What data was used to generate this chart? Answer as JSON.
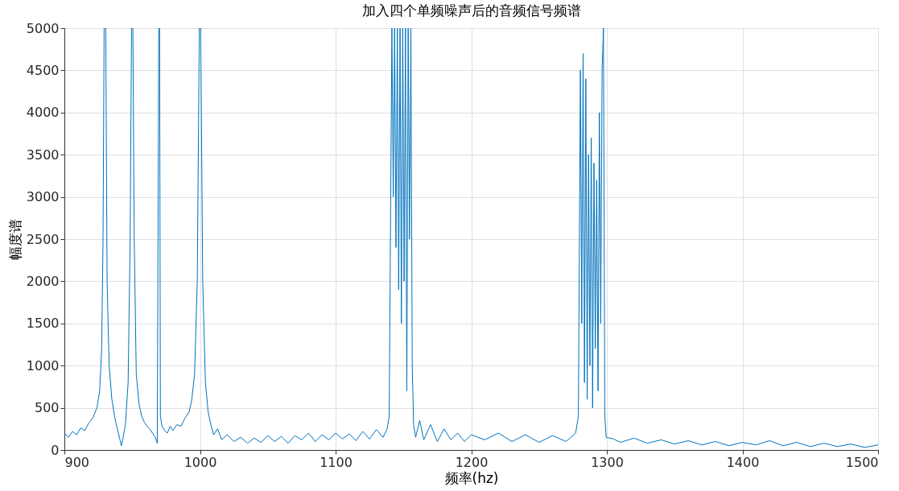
{
  "chart_data": {
    "type": "line",
    "title": "加入四个单频噪声后的音频信号频谱",
    "xlabel": "频率(hz)",
    "ylabel": "幅度谱",
    "xlim": [
      900,
      1500
    ],
    "xticks": [
      900,
      1000,
      1100,
      1200,
      1300,
      1400,
      1500
    ],
    "ylim": [
      0,
      5000
    ],
    "yticks": [
      0,
      500,
      1000,
      1500,
      2000,
      2500,
      3000,
      3500,
      4000,
      4500,
      5000
    ],
    "grid": true,
    "line_style": "solid",
    "marker": "none",
    "series": [
      {
        "color": "#0072bd",
        "x": [
          900,
          903,
          906,
          909,
          912,
          915,
          918,
          921,
          924,
          926,
          927.5,
          928.5,
          929.3,
          930.5,
          931.5,
          933,
          935,
          937,
          939,
          941,
          942,
          943,
          945,
          947,
          948.5,
          949.5,
          950.5,
          951.5,
          953,
          955,
          957,
          959,
          961,
          963,
          965,
          967,
          968.5,
          969.6,
          970.2,
          970.8,
          972,
          974,
          976,
          978,
          980,
          983,
          986,
          989,
          992,
          994,
          996,
          998,
          999.5,
          1000.5,
          1002,
          1004,
          1006,
          1008,
          1010,
          1013,
          1016,
          1020,
          1025,
          1030,
          1035,
          1040,
          1045,
          1050,
          1055,
          1060,
          1065,
          1070,
          1075,
          1080,
          1085,
          1090,
          1095,
          1100,
          1105,
          1110,
          1115,
          1120,
          1125,
          1130,
          1135,
          1138,
          1139.5,
          1140.5,
          1141.5,
          1142.5,
          1143.5,
          1144.5,
          1145.5,
          1146.5,
          1147.5,
          1148.5,
          1149.5,
          1150.5,
          1151.5,
          1152.5,
          1153.5,
          1154.5,
          1155.5,
          1156.5,
          1157.5,
          1159,
          1162,
          1165,
          1170,
          1175,
          1180,
          1185,
          1190,
          1195,
          1200,
          1210,
          1220,
          1230,
          1240,
          1250,
          1260,
          1270,
          1277,
          1279,
          1280.5,
          1281.5,
          1282.5,
          1283.5,
          1284.5,
          1285.5,
          1286.5,
          1287.5,
          1288.5,
          1289.5,
          1290.5,
          1291.5,
          1292.5,
          1293.5,
          1294.5,
          1295.5,
          1296.5,
          1297.5,
          1298.5,
          1299.5,
          1305,
          1310,
          1320,
          1330,
          1340,
          1350,
          1360,
          1370,
          1380,
          1390,
          1400,
          1410,
          1420,
          1430,
          1440,
          1450,
          1460,
          1470,
          1480,
          1490,
          1500
        ],
        "values": [
          200,
          150,
          220,
          180,
          260,
          230,
          320,
          380,
          500,
          700,
          1200,
          2500,
          5000,
          5000,
          2000,
          1000,
          600,
          400,
          250,
          120,
          50,
          120,
          300,
          800,
          2500,
          5000,
          5000,
          2500,
          900,
          550,
          400,
          330,
          280,
          250,
          200,
          150,
          80,
          5000,
          5000,
          400,
          280,
          230,
          200,
          280,
          230,
          300,
          280,
          380,
          450,
          600,
          900,
          2000,
          5000,
          5000,
          2000,
          800,
          450,
          300,
          180,
          250,
          120,
          180,
          100,
          150,
          80,
          140,
          90,
          170,
          100,
          160,
          80,
          170,
          120,
          200,
          100,
          180,
          120,
          200,
          130,
          190,
          110,
          220,
          130,
          240,
          150,
          250,
          400,
          2700,
          5000,
          3000,
          5000,
          2400,
          5000,
          1900,
          5000,
          1500,
          5000,
          2000,
          5000,
          700,
          5000,
          2500,
          5000,
          1000,
          300,
          150,
          350,
          120,
          300,
          100,
          250,
          120,
          200,
          100,
          180,
          120,
          200,
          100,
          180,
          90,
          170,
          100,
          200,
          400,
          4500,
          1500,
          4700,
          800,
          4400,
          600,
          3500,
          1000,
          3700,
          500,
          3400,
          1200,
          3200,
          700,
          4000,
          1500,
          4500,
          5000,
          400,
          150,
          130,
          90,
          140,
          80,
          120,
          70,
          110,
          60,
          100,
          50,
          90,
          60,
          110,
          50,
          90,
          40,
          80,
          40,
          70,
          30,
          60
        ]
      }
    ]
  }
}
